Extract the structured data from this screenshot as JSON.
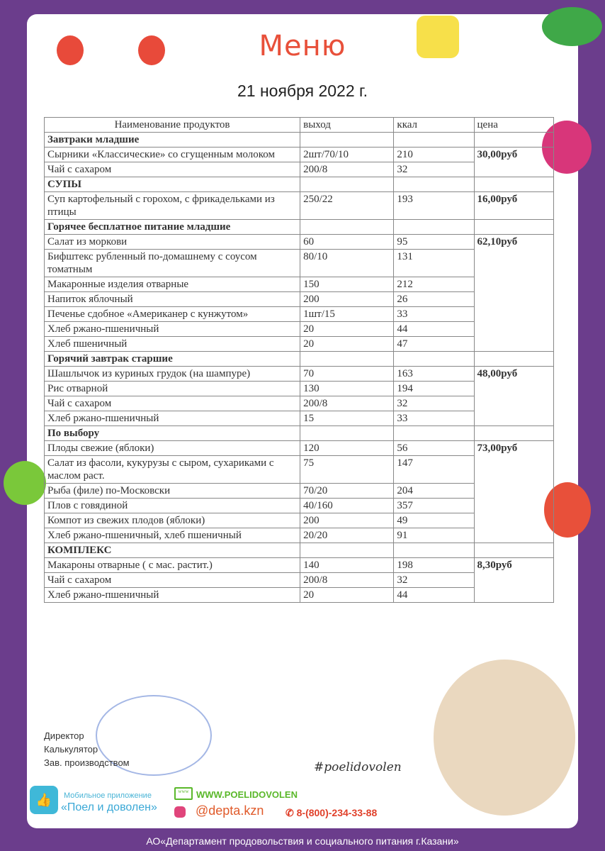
{
  "title": "Меню",
  "date": "21 ноября 2022 г.",
  "columns": [
    "Наименование продуктов",
    "выход",
    "ккал",
    "цена"
  ],
  "sections": [
    {
      "title": "Завтраки младшие",
      "price": "30,00руб",
      "items": [
        [
          "Сырники «Классические» со сгущенным молоком",
          "2шт/70/10",
          "210"
        ],
        [
          "Чай с сахаром",
          "200/8",
          "32"
        ]
      ]
    },
    {
      "title": "СУПЫ",
      "price": "16,00руб",
      "items": [
        [
          "Суп картофельный с горохом, с фрикадельками из птицы",
          "250/22",
          "193"
        ]
      ]
    },
    {
      "title": "Горячее бесплатное питание младшие",
      "price": "62,10руб",
      "items": [
        [
          "Салат из моркови",
          "60",
          "95"
        ],
        [
          "Бифштекс рубленный по-домашнему с соусом томатным",
          "80/10",
          "131"
        ],
        [
          "Макаронные изделия отварные",
          "150",
          "212"
        ],
        [
          "Напиток яблочный",
          "200",
          "26"
        ],
        [
          "Печенье сдобное «Американер с кунжутом»",
          "1шт/15",
          "33"
        ],
        [
          "Хлеб ржано-пшеничный",
          "20",
          "44"
        ],
        [
          "Хлеб пшеничный",
          "20",
          "47"
        ]
      ]
    },
    {
      "title": "Горячий завтрак старшие",
      "price": "48,00руб",
      "items": [
        [
          "Шашлычок из куриных грудок (на шампуре)",
          "70",
          "163"
        ],
        [
          "Рис отварной",
          "130",
          "194"
        ],
        [
          "Чай с сахаром",
          "200/8",
          "32"
        ],
        [
          "Хлеб ржано-пшеничный",
          "15",
          "33"
        ]
      ]
    },
    {
      "title": "По выбору",
      "price": "73,00руб",
      "items": [
        [
          "Плоды свежие (яблоки)",
          "120",
          "56"
        ],
        [
          "Салат из фасоли, кукурузы с сыром, сухариками с маслом раст.",
          "75",
          "147"
        ],
        [
          "Рыба (филе) по-Московски",
          "70/20",
          "204"
        ],
        [
          "Плов с говядиной",
          "40/160",
          "357"
        ],
        [
          "Компот из свежих плодов (яблоки)",
          "200",
          "49"
        ],
        [
          "Хлеб ржано-пшеничный, хлеб пшеничный",
          "20/20",
          "91"
        ]
      ]
    },
    {
      "title": "КОМПЛЕКС",
      "price": "8,30руб",
      "items": [
        [
          "Макароны отварные ( с мас. растит.)",
          "140",
          "198"
        ],
        [
          "Чай с сахаром",
          "200/8",
          "32"
        ],
        [
          "Хлеб ржано-пшеничный",
          "20",
          "44"
        ]
      ]
    }
  ],
  "signatures": [
    "Директор",
    "Калькулятор",
    "Зав. производством"
  ],
  "hashtag": "#poelidovolen",
  "app": {
    "label": "Мобильное приложение",
    "name": "«Поел и доволен»"
  },
  "website": "WWW.POELIDOVOLEN",
  "instagram": "@depta.kzn",
  "phone": "8-(800)-234-33-88",
  "footer": "АО«Департамент продовольствия и социального питания г.Казани»",
  "colors": {
    "frame": "#6b3d8c",
    "title": "#e8503a",
    "website": "#5ab82a",
    "phone": "#e0402a"
  }
}
